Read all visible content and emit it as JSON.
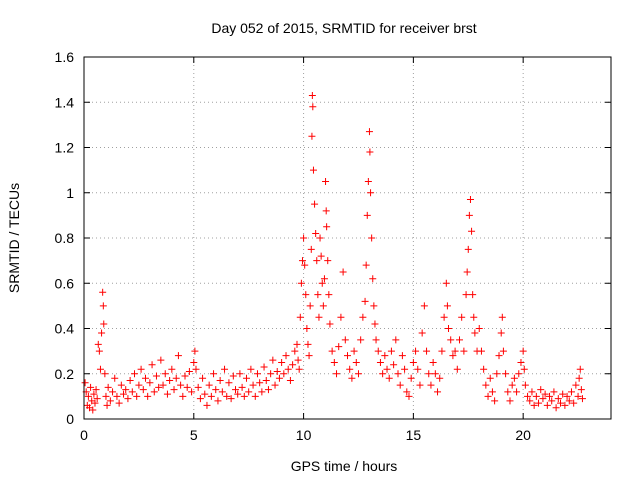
{
  "chart_data": {
    "type": "scatter",
    "title": "Day 052 of 2015, SRMTID for receiver brst",
    "xlabel": "GPS time / hours",
    "ylabel": "SRMTID / TECUs",
    "xlim": [
      0,
      24
    ],
    "ylim": [
      0,
      1.6
    ],
    "xticks": [
      0,
      5,
      10,
      15,
      20
    ],
    "yticks": [
      0,
      0.2,
      0.4,
      0.6,
      0.8,
      1,
      1.2,
      1.4,
      1.6
    ],
    "grid": true,
    "marker": "+",
    "color": "#ff0000",
    "series": [
      {
        "name": "SRMTID",
        "points": [
          [
            0.05,
            0.16
          ],
          [
            0.1,
            0.12
          ],
          [
            0.15,
            0.06
          ],
          [
            0.2,
            0.1
          ],
          [
            0.25,
            0.05
          ],
          [
            0.3,
            0.14
          ],
          [
            0.35,
            0.08
          ],
          [
            0.4,
            0.04
          ],
          [
            0.45,
            0.11
          ],
          [
            0.5,
            0.07
          ],
          [
            0.55,
            0.13
          ],
          [
            0.6,
            0.09
          ],
          [
            0.65,
            0.33
          ],
          [
            0.7,
            0.3
          ],
          [
            0.75,
            0.22
          ],
          [
            0.8,
            0.38
          ],
          [
            0.85,
            0.56
          ],
          [
            0.88,
            0.5
          ],
          [
            0.9,
            0.42
          ],
          [
            0.95,
            0.2
          ],
          [
            1.0,
            0.1
          ],
          [
            1.05,
            0.06
          ],
          [
            1.1,
            0.14
          ],
          [
            1.2,
            0.08
          ],
          [
            1.3,
            0.12
          ],
          [
            1.4,
            0.18
          ],
          [
            1.5,
            0.1
          ],
          [
            1.6,
            0.07
          ],
          [
            1.7,
            0.15
          ],
          [
            1.8,
            0.11
          ],
          [
            1.9,
            0.13
          ],
          [
            2.0,
            0.09
          ],
          [
            2.1,
            0.17
          ],
          [
            2.2,
            0.12
          ],
          [
            2.3,
            0.2
          ],
          [
            2.4,
            0.1
          ],
          [
            2.5,
            0.15
          ],
          [
            2.6,
            0.22
          ],
          [
            2.7,
            0.13
          ],
          [
            2.8,
            0.18
          ],
          [
            2.9,
            0.1
          ],
          [
            3.0,
            0.16
          ],
          [
            3.1,
            0.24
          ],
          [
            3.2,
            0.12
          ],
          [
            3.3,
            0.19
          ],
          [
            3.4,
            0.14
          ],
          [
            3.5,
            0.26
          ],
          [
            3.6,
            0.15
          ],
          [
            3.7,
            0.2
          ],
          [
            3.8,
            0.11
          ],
          [
            3.9,
            0.17
          ],
          [
            4.0,
            0.22
          ],
          [
            4.1,
            0.13
          ],
          [
            4.2,
            0.18
          ],
          [
            4.3,
            0.28
          ],
          [
            4.4,
            0.15
          ],
          [
            4.5,
            0.1
          ],
          [
            4.6,
            0.19
          ],
          [
            4.7,
            0.14
          ],
          [
            4.8,
            0.21
          ],
          [
            4.9,
            0.12
          ],
          [
            5.0,
            0.25
          ],
          [
            5.05,
            0.3
          ],
          [
            5.1,
            0.22
          ],
          [
            5.2,
            0.14
          ],
          [
            5.3,
            0.09
          ],
          [
            5.4,
            0.18
          ],
          [
            5.5,
            0.11
          ],
          [
            5.6,
            0.06
          ],
          [
            5.7,
            0.15
          ],
          [
            5.8,
            0.1
          ],
          [
            5.9,
            0.2
          ],
          [
            6.0,
            0.13
          ],
          [
            6.1,
            0.08
          ],
          [
            6.2,
            0.17
          ],
          [
            6.3,
            0.12
          ],
          [
            6.4,
            0.22
          ],
          [
            6.5,
            0.1
          ],
          [
            6.6,
            0.16
          ],
          [
            6.7,
            0.09
          ],
          [
            6.8,
            0.19
          ],
          [
            6.9,
            0.13
          ],
          [
            7.0,
            0.11
          ],
          [
            7.1,
            0.2
          ],
          [
            7.2,
            0.14
          ],
          [
            7.3,
            0.1
          ],
          [
            7.4,
            0.18
          ],
          [
            7.5,
            0.12
          ],
          [
            7.6,
            0.22
          ],
          [
            7.7,
            0.15
          ],
          [
            7.8,
            0.1
          ],
          [
            7.9,
            0.2
          ],
          [
            8.0,
            0.16
          ],
          [
            8.1,
            0.12
          ],
          [
            8.2,
            0.23
          ],
          [
            8.3,
            0.17
          ],
          [
            8.4,
            0.13
          ],
          [
            8.5,
            0.2
          ],
          [
            8.6,
            0.26
          ],
          [
            8.7,
            0.15
          ],
          [
            8.8,
            0.21
          ],
          [
            8.9,
            0.18
          ],
          [
            9.0,
            0.25
          ],
          [
            9.1,
            0.2
          ],
          [
            9.2,
            0.28
          ],
          [
            9.3,
            0.22
          ],
          [
            9.4,
            0.17
          ],
          [
            9.5,
            0.24
          ],
          [
            9.6,
            0.3
          ],
          [
            9.7,
            0.33
          ],
          [
            9.75,
            0.26
          ],
          [
            9.8,
            0.22
          ],
          [
            9.85,
            0.45
          ],
          [
            9.9,
            0.6
          ],
          [
            9.95,
            0.7
          ],
          [
            10.0,
            0.8
          ],
          [
            10.05,
            0.68
          ],
          [
            10.1,
            0.55
          ],
          [
            10.15,
            0.4
          ],
          [
            10.2,
            0.33
          ],
          [
            10.25,
            0.28
          ],
          [
            10.3,
            0.5
          ],
          [
            10.35,
            0.75
          ],
          [
            10.38,
            1.25
          ],
          [
            10.4,
            1.43
          ],
          [
            10.42,
            1.38
          ],
          [
            10.45,
            1.1
          ],
          [
            10.5,
            0.95
          ],
          [
            10.55,
            0.82
          ],
          [
            10.6,
            0.7
          ],
          [
            10.65,
            0.55
          ],
          [
            10.7,
            0.45
          ],
          [
            10.75,
            0.8
          ],
          [
            10.8,
            0.72
          ],
          [
            10.85,
            0.6
          ],
          [
            10.9,
            0.5
          ],
          [
            10.95,
            0.62
          ],
          [
            11.0,
            1.05
          ],
          [
            11.03,
            0.92
          ],
          [
            11.05,
            0.85
          ],
          [
            11.1,
            0.7
          ],
          [
            11.15,
            0.55
          ],
          [
            11.2,
            0.42
          ],
          [
            11.3,
            0.3
          ],
          [
            11.4,
            0.25
          ],
          [
            11.5,
            0.2
          ],
          [
            11.6,
            0.32
          ],
          [
            11.7,
            0.45
          ],
          [
            11.8,
            0.65
          ],
          [
            11.9,
            0.35
          ],
          [
            12.0,
            0.28
          ],
          [
            12.1,
            0.22
          ],
          [
            12.2,
            0.18
          ],
          [
            12.3,
            0.3
          ],
          [
            12.4,
            0.25
          ],
          [
            12.5,
            0.2
          ],
          [
            12.6,
            0.35
          ],
          [
            12.7,
            0.45
          ],
          [
            12.8,
            0.52
          ],
          [
            12.85,
            0.68
          ],
          [
            12.9,
            0.9
          ],
          [
            12.95,
            1.05
          ],
          [
            13.0,
            1.27
          ],
          [
            13.02,
            1.18
          ],
          [
            13.05,
            1.0
          ],
          [
            13.1,
            0.8
          ],
          [
            13.15,
            0.62
          ],
          [
            13.2,
            0.5
          ],
          [
            13.25,
            0.42
          ],
          [
            13.3,
            0.35
          ],
          [
            13.4,
            0.3
          ],
          [
            13.5,
            0.25
          ],
          [
            13.6,
            0.2
          ],
          [
            13.7,
            0.28
          ],
          [
            13.8,
            0.22
          ],
          [
            13.9,
            0.18
          ],
          [
            14.0,
            0.3
          ],
          [
            14.1,
            0.24
          ],
          [
            14.2,
            0.35
          ],
          [
            14.3,
            0.2
          ],
          [
            14.4,
            0.15
          ],
          [
            14.5,
            0.28
          ],
          [
            14.6,
            0.22
          ],
          [
            14.7,
            0.12
          ],
          [
            14.8,
            0.1
          ],
          [
            14.9,
            0.18
          ],
          [
            15.0,
            0.25
          ],
          [
            15.1,
            0.3
          ],
          [
            15.2,
            0.22
          ],
          [
            15.3,
            0.15
          ],
          [
            15.4,
            0.38
          ],
          [
            15.5,
            0.5
          ],
          [
            15.6,
            0.3
          ],
          [
            15.7,
            0.2
          ],
          [
            15.8,
            0.15
          ],
          [
            15.9,
            0.25
          ],
          [
            16.0,
            0.2
          ],
          [
            16.1,
            0.12
          ],
          [
            16.2,
            0.18
          ],
          [
            16.3,
            0.3
          ],
          [
            16.4,
            0.45
          ],
          [
            16.5,
            0.6
          ],
          [
            16.55,
            0.5
          ],
          [
            16.6,
            0.4
          ],
          [
            16.7,
            0.35
          ],
          [
            16.8,
            0.28
          ],
          [
            16.9,
            0.3
          ],
          [
            17.0,
            0.22
          ],
          [
            17.1,
            0.35
          ],
          [
            17.2,
            0.45
          ],
          [
            17.3,
            0.3
          ],
          [
            17.4,
            0.55
          ],
          [
            17.45,
            0.65
          ],
          [
            17.5,
            0.75
          ],
          [
            17.55,
            0.9
          ],
          [
            17.6,
            0.97
          ],
          [
            17.65,
            0.83
          ],
          [
            17.7,
            0.55
          ],
          [
            17.75,
            0.45
          ],
          [
            17.8,
            0.38
          ],
          [
            17.9,
            0.3
          ],
          [
            18.0,
            0.4
          ],
          [
            18.1,
            0.3
          ],
          [
            18.2,
            0.22
          ],
          [
            18.3,
            0.15
          ],
          [
            18.4,
            0.1
          ],
          [
            18.5,
            0.18
          ],
          [
            18.6,
            0.12
          ],
          [
            18.7,
            0.08
          ],
          [
            18.8,
            0.2
          ],
          [
            18.9,
            0.28
          ],
          [
            19.0,
            0.38
          ],
          [
            19.05,
            0.45
          ],
          [
            19.1,
            0.3
          ],
          [
            19.2,
            0.2
          ],
          [
            19.3,
            0.12
          ],
          [
            19.4,
            0.08
          ],
          [
            19.5,
            0.15
          ],
          [
            19.6,
            0.18
          ],
          [
            19.7,
            0.12
          ],
          [
            19.8,
            0.2
          ],
          [
            19.9,
            0.25
          ],
          [
            20.0,
            0.3
          ],
          [
            20.05,
            0.22
          ],
          [
            20.1,
            0.15
          ],
          [
            20.2,
            0.1
          ],
          [
            20.3,
            0.08
          ],
          [
            20.4,
            0.12
          ],
          [
            20.5,
            0.06
          ],
          [
            20.6,
            0.1
          ],
          [
            20.7,
            0.07
          ],
          [
            20.8,
            0.13
          ],
          [
            20.9,
            0.09
          ],
          [
            21.0,
            0.11
          ],
          [
            21.1,
            0.06
          ],
          [
            21.2,
            0.1
          ],
          [
            21.3,
            0.08
          ],
          [
            21.4,
            0.12
          ],
          [
            21.5,
            0.05
          ],
          [
            21.6,
            0.09
          ],
          [
            21.7,
            0.07
          ],
          [
            21.8,
            0.11
          ],
          [
            21.9,
            0.06
          ],
          [
            22.0,
            0.1
          ],
          [
            22.1,
            0.08
          ],
          [
            22.2,
            0.12
          ],
          [
            22.3,
            0.07
          ],
          [
            22.4,
            0.15
          ],
          [
            22.5,
            0.1
          ],
          [
            22.55,
            0.18
          ],
          [
            22.6,
            0.22
          ],
          [
            22.65,
            0.13
          ],
          [
            22.7,
            0.09
          ]
        ]
      }
    ]
  }
}
